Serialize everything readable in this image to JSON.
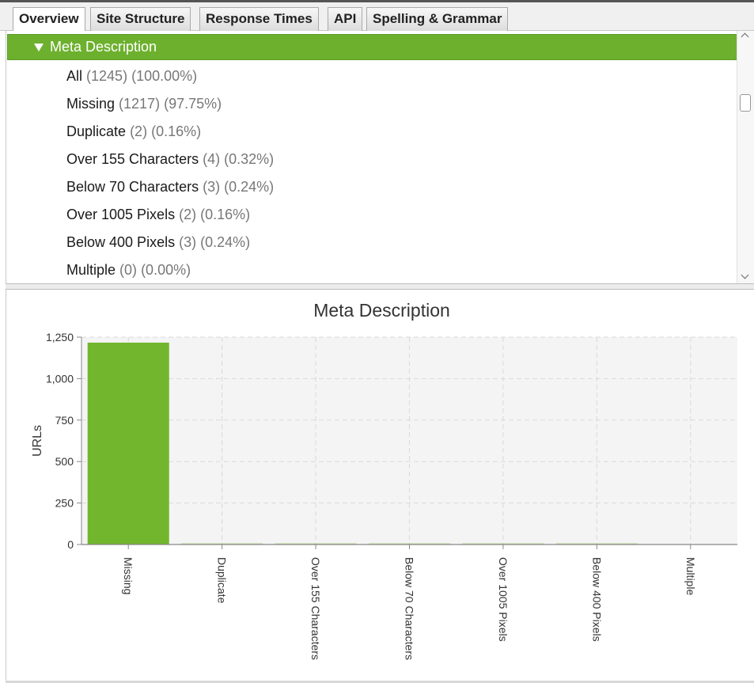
{
  "tabs": [
    {
      "label": "Overview",
      "active": true
    },
    {
      "label": "Site Structure",
      "active": false
    },
    {
      "label": "Response Times",
      "active": false
    },
    {
      "label": "API",
      "active": false
    },
    {
      "label": "Spelling & Grammar",
      "active": false
    }
  ],
  "tree": {
    "section_label": "Meta Description",
    "items": [
      {
        "name": "All",
        "count": "(1245)",
        "percent": "(100.00%)"
      },
      {
        "name": "Missing",
        "count": "(1217)",
        "percent": "(97.75%)"
      },
      {
        "name": "Duplicate",
        "count": "(2)",
        "percent": "(0.16%)"
      },
      {
        "name": "Over 155 Characters",
        "count": "(4)",
        "percent": "(0.32%)"
      },
      {
        "name": "Below 70 Characters",
        "count": "(3)",
        "percent": "(0.24%)"
      },
      {
        "name": "Over 1005 Pixels",
        "count": "(2)",
        "percent": "(0.16%)"
      },
      {
        "name": "Below 400 Pixels",
        "count": "(3)",
        "percent": "(0.24%)"
      },
      {
        "name": "Multiple",
        "count": "(0)",
        "percent": "(0.00%)"
      }
    ]
  },
  "colors": {
    "accent_green": "#6db02e",
    "bar_green": "#72b62d"
  },
  "chart_data": {
    "type": "bar",
    "title": "Meta Description",
    "xlabel": "",
    "ylabel": "URLs",
    "categories": [
      "Missing",
      "Duplicate",
      "Over 155 Characters",
      "Below 70 Characters",
      "Over 1005 Pixels",
      "Below 400 Pixels",
      "Multiple"
    ],
    "values": [
      1217,
      2,
      4,
      3,
      2,
      3,
      0
    ],
    "ylim": [
      0,
      1250
    ],
    "yticks": [
      0,
      250,
      500,
      750,
      1000,
      1250
    ],
    "ytick_labels": [
      "0",
      "250",
      "500",
      "750",
      "1,000",
      "1,250"
    ],
    "grid": true,
    "legend": "none"
  }
}
